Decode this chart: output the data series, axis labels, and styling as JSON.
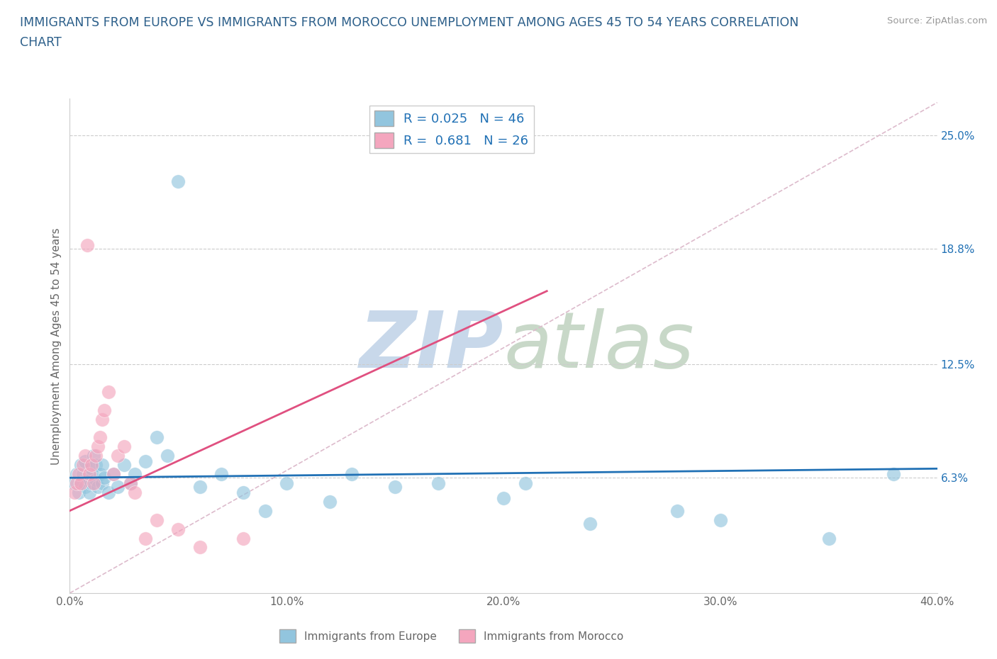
{
  "title_line1": "IMMIGRANTS FROM EUROPE VS IMMIGRANTS FROM MOROCCO UNEMPLOYMENT AMONG AGES 45 TO 54 YEARS CORRELATION",
  "title_line2": "CHART",
  "source_text": "Source: ZipAtlas.com",
  "ylabel": "Unemployment Among Ages 45 to 54 years",
  "xlabel": "",
  "xlim": [
    0.0,
    0.4
  ],
  "ylim": [
    0.0,
    0.27
  ],
  "xtick_labels": [
    "0.0%",
    "10.0%",
    "20.0%",
    "30.0%",
    "40.0%"
  ],
  "xtick_values": [
    0.0,
    0.1,
    0.2,
    0.3,
    0.4
  ],
  "ytick_labels_right": [
    "6.3%",
    "12.5%",
    "18.8%",
    "25.0%"
  ],
  "ytick_values_right": [
    0.063,
    0.125,
    0.188,
    0.25
  ],
  "blue_color": "#92c5de",
  "pink_color": "#f4a6be",
  "blue_line_color": "#2171b5",
  "pink_line_color": "#e05080",
  "title_color": "#2c5f8a",
  "source_color": "#999999",
  "watermark_color_zip": "#c8d8ea",
  "watermark_color_atlas": "#c8d8c8",
  "R_blue": 0.025,
  "N_blue": 46,
  "R_pink": 0.681,
  "N_pink": 26,
  "legend_label_blue": "Immigrants from Europe",
  "legend_label_pink": "Immigrants from Morocco",
  "blue_scatter_x": [
    0.002,
    0.003,
    0.004,
    0.005,
    0.005,
    0.006,
    0.007,
    0.007,
    0.008,
    0.009,
    0.01,
    0.01,
    0.011,
    0.012,
    0.012,
    0.013,
    0.014,
    0.015,
    0.015,
    0.016,
    0.018,
    0.02,
    0.022,
    0.025,
    0.028,
    0.03,
    0.035,
    0.04,
    0.045,
    0.05,
    0.06,
    0.07,
    0.08,
    0.09,
    0.1,
    0.12,
    0.13,
    0.15,
    0.17,
    0.2,
    0.21,
    0.24,
    0.28,
    0.3,
    0.35,
    0.38
  ],
  "blue_scatter_y": [
    0.06,
    0.065,
    0.055,
    0.07,
    0.06,
    0.065,
    0.058,
    0.072,
    0.063,
    0.055,
    0.068,
    0.06,
    0.075,
    0.062,
    0.07,
    0.058,
    0.065,
    0.06,
    0.07,
    0.063,
    0.055,
    0.065,
    0.058,
    0.07,
    0.06,
    0.065,
    0.072,
    0.085,
    0.075,
    0.225,
    0.058,
    0.065,
    0.055,
    0.045,
    0.06,
    0.05,
    0.065,
    0.058,
    0.06,
    0.052,
    0.06,
    0.038,
    0.045,
    0.04,
    0.03,
    0.065
  ],
  "pink_scatter_x": [
    0.002,
    0.003,
    0.004,
    0.005,
    0.006,
    0.007,
    0.008,
    0.009,
    0.01,
    0.011,
    0.012,
    0.013,
    0.014,
    0.015,
    0.016,
    0.018,
    0.02,
    0.022,
    0.025,
    0.028,
    0.03,
    0.035,
    0.04,
    0.05,
    0.06,
    0.08
  ],
  "pink_scatter_y": [
    0.055,
    0.06,
    0.065,
    0.06,
    0.07,
    0.075,
    0.19,
    0.065,
    0.07,
    0.06,
    0.075,
    0.08,
    0.085,
    0.095,
    0.1,
    0.11,
    0.065,
    0.075,
    0.08,
    0.06,
    0.055,
    0.03,
    0.04,
    0.035,
    0.025,
    0.03
  ],
  "blue_trendline_x": [
    0.0,
    0.4
  ],
  "blue_trendline_y": [
    0.063,
    0.068
  ],
  "pink_trendline_x": [
    0.0,
    0.22
  ],
  "pink_trendline_y": [
    0.045,
    0.165
  ]
}
